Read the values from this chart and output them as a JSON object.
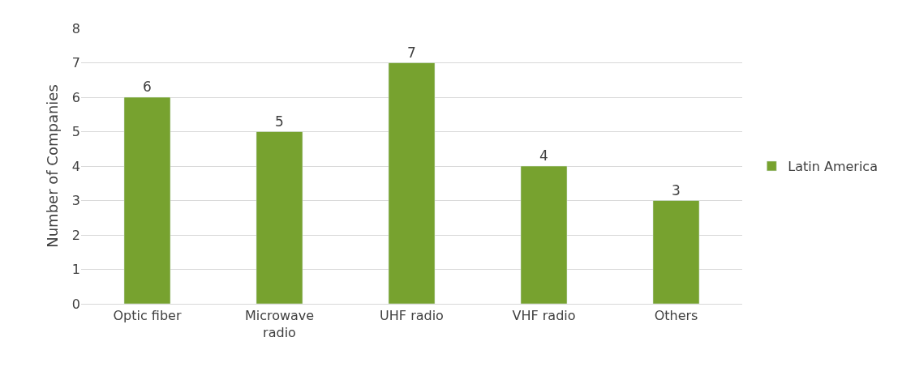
{
  "chart_data": {
    "type": "bar",
    "ylabel": "Number of Companies",
    "categories": [
      "Optic fiber",
      "Microwave radio",
      "UHF radio",
      "VHF radio",
      "Others"
    ],
    "series": [
      {
        "name": "Latin America",
        "color": "#77a22f",
        "values": [
          6,
          5,
          7,
          4,
          3
        ]
      }
    ],
    "ylim": [
      0,
      8
    ],
    "yticks": [
      0,
      1,
      2,
      3,
      4,
      5,
      6,
      7,
      8
    ],
    "grid": "y",
    "legend": "right",
    "data_labels": true
  }
}
